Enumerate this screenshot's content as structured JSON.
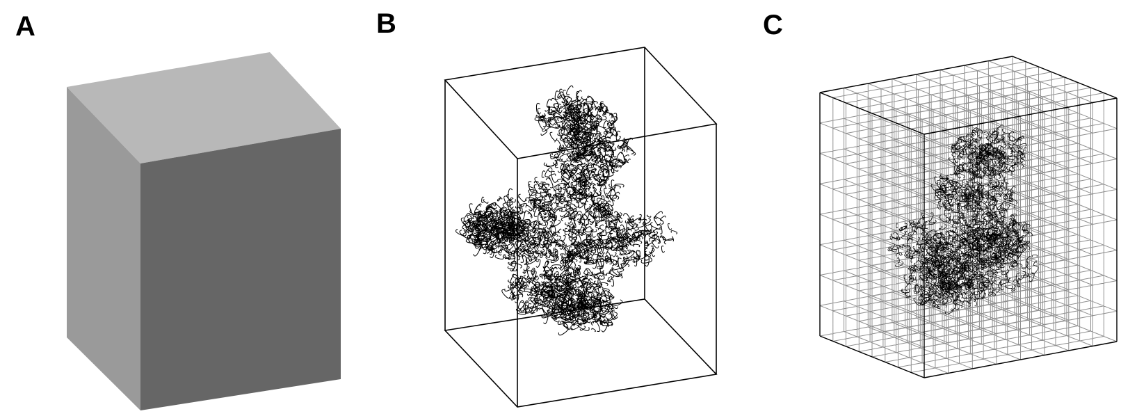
{
  "panels": [
    {
      "label": "A"
    },
    {
      "label": "B"
    },
    {
      "label": "C"
    }
  ],
  "colors": {
    "box_top": "#b8b8b8",
    "box_left": "#9a9a9a",
    "box_front": "#666666",
    "line": "#000000",
    "grid_line": "#333333",
    "background": "#ffffff"
  }
}
